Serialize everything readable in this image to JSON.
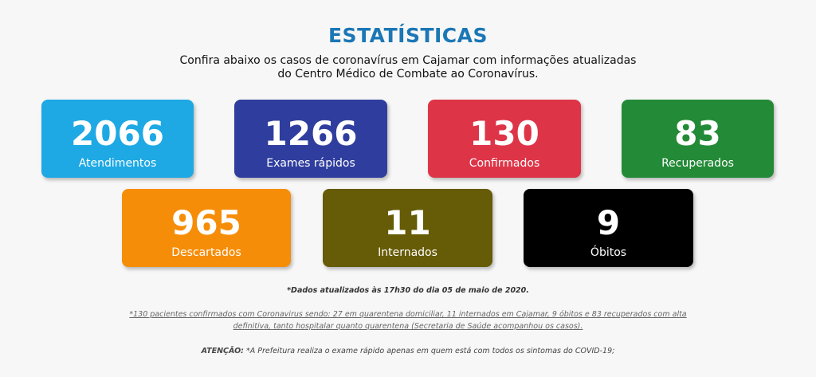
{
  "header": {
    "title": "ESTATÍSTICAS",
    "subtitle_line1": "Confira abaixo os casos de coronavírus em Cajamar com informações atualizadas",
    "subtitle_line2": "do Centro Médico de Combate ao Coronavírus."
  },
  "stats": [
    {
      "value": "2066",
      "label": "Atendimentos",
      "color": "#1ea9e4"
    },
    {
      "value": "1266",
      "label": "Exames rápidos",
      "color": "#2f3e9e"
    },
    {
      "value": "130",
      "label": "Confirmados",
      "color": "#de3447"
    },
    {
      "value": "83",
      "label": "Recuperados",
      "color": "#238a37"
    },
    {
      "value": "965",
      "label": "Descartados",
      "color": "#f68d08"
    },
    {
      "value": "11",
      "label": "Internados",
      "color": "#665b06"
    },
    {
      "value": "9",
      "label": "Óbitos",
      "color": "#000000"
    }
  ],
  "footer": {
    "updated": "*Dados atualizados às 17h30 do dia 05 de maio de 2020.",
    "detail_line1": "*130 pacientes confirmados com Coronavirus sendo: 27 em quarentena domiciliar, 11 internados em Cajamar, 9 óbitos e 83 recuperados com alta",
    "detail_line2": "definitiva, tanto hospitalar quanto quarentena (Secretaria de Saúde acompanhou os casos).",
    "attention_label": "ATENÇÃO:",
    "attention_text": " *A Prefeitura realiza o exame rápido apenas em quem está com todos os sintomas do COVID-19;"
  }
}
